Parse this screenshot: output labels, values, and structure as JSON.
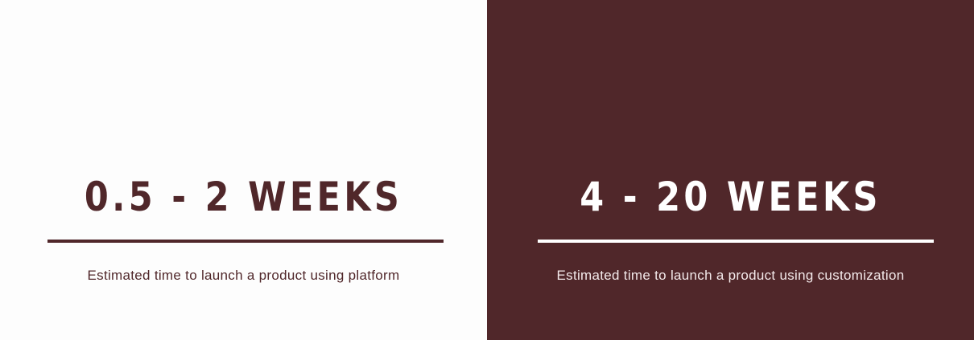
{
  "colors": {
    "brand_dark": "#50272a",
    "light_background": "#fdfdfd",
    "white": "#ffffff"
  },
  "panels": [
    {
      "headline": "0.5 - 2 WEEKS",
      "caption": "Estimated time to launch a product using platform"
    },
    {
      "headline": "4 - 20 WEEKS",
      "caption": "Estimated time to launch a product using customization"
    }
  ]
}
